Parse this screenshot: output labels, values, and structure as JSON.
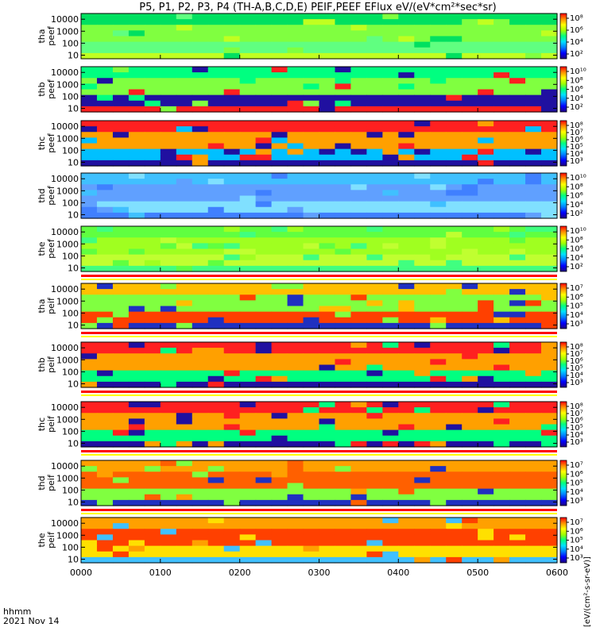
{
  "chart_data": {
    "type": "heatmap",
    "title": "P5, P1, P2, P3, P4 (TH-A,B,C,D,E) PEIF,PEEF EFlux eV/(eV*cm²*sec*sr)",
    "colorbar_label": "[eV/(cm²-s-sr-eV)]",
    "xaxis": {
      "tick_labels": [
        "0000",
        "0100",
        "0200",
        "0300",
        "0400",
        "0500",
        "0600"
      ],
      "range": [
        0,
        6
      ],
      "label_line1": "hhmm",
      "label_line2": "2021 Nov 14"
    },
    "yaxis": {
      "scale": "log",
      "range": [
        5,
        30000
      ],
      "tick_labels": [
        "10",
        "100",
        "1000",
        "10000"
      ]
    },
    "panels": [
      {
        "probe": "tha",
        "product": "peef",
        "label_top": "tha",
        "label_bottom": "peef",
        "cb_ticks": [
          "10⁸",
          "10⁶",
          "10⁴",
          "10²"
        ],
        "bar_below": false
      },
      {
        "probe": "thb",
        "product": "peef",
        "label_top": "thb",
        "label_bottom": "peef",
        "cb_ticks": [
          "10¹⁰",
          "10⁸",
          "10⁶",
          "10⁴",
          "10²"
        ],
        "bar_below": false
      },
      {
        "probe": "thc",
        "product": "peef",
        "label_top": "thc",
        "label_bottom": "peef",
        "cb_ticks": [
          "10⁸",
          "10⁷",
          "10⁶",
          "10⁵",
          "10⁴",
          "10³"
        ],
        "bar_below": false
      },
      {
        "probe": "thd",
        "product": "peef",
        "label_top": "thd",
        "label_bottom": "peef",
        "cb_ticks": [
          "10¹⁰",
          "10⁸",
          "10⁶",
          "10⁴",
          "10²"
        ],
        "bar_below": false
      },
      {
        "probe": "the",
        "product": "peef",
        "label_top": "the",
        "label_bottom": "peef",
        "cb_ticks": [
          "10¹⁰",
          "10⁸",
          "10⁶",
          "10⁴",
          "10²"
        ],
        "bar_below": true
      },
      {
        "probe": "tha",
        "product": "peif",
        "label_top": "tha",
        "label_bottom": "peif",
        "cb_ticks": [
          "10⁷",
          "10⁶",
          "10⁵",
          "10⁴",
          "10³"
        ],
        "bar_below": true
      },
      {
        "probe": "thb",
        "product": "peif",
        "label_top": "thb",
        "label_bottom": "peif",
        "cb_ticks": [
          "10⁸",
          "10⁷",
          "10⁶",
          "10⁵",
          "10⁴",
          "10³"
        ],
        "bar_below": true
      },
      {
        "probe": "thc",
        "product": "peif",
        "label_top": "thc",
        "label_bottom": "peif",
        "cb_ticks": [
          "10⁸",
          "10⁷",
          "10⁶",
          "10⁵",
          "10⁴",
          "10³"
        ],
        "bar_below": true
      },
      {
        "probe": "thd",
        "product": "peif",
        "label_top": "thd",
        "label_bottom": "peif",
        "cb_ticks": [
          "10⁷",
          "10⁶",
          "10⁵",
          "10⁴",
          "10³"
        ],
        "bar_below": true
      },
      {
        "probe": "the",
        "product": "peif",
        "label_top": "the",
        "label_bottom": "peif",
        "cb_ticks": [
          "10⁷",
          "10⁶",
          "10⁵",
          "10⁴",
          "10³"
        ],
        "bar_below": false
      }
    ],
    "colormap": [
      "#20007f",
      "#0000ff",
      "#0080ff",
      "#00e0ff",
      "#00ff80",
      "#a0ff00",
      "#ffff00",
      "#ff9000",
      "#ff0000"
    ]
  }
}
